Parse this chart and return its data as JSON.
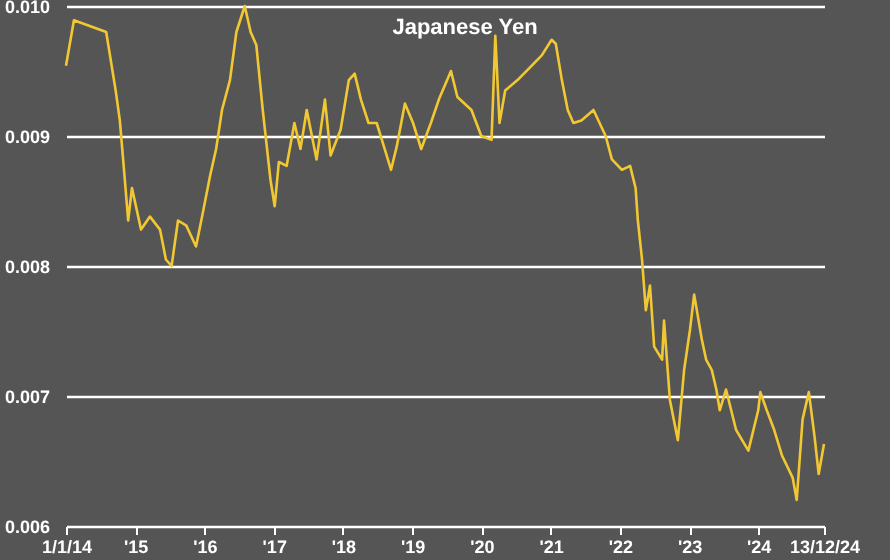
{
  "chart_data": {
    "type": "line",
    "title": "Japanese Yen",
    "x": [
      "2014-01-01",
      "2014-02-12",
      "2014-08-01",
      "2014-09-20",
      "2014-10-12",
      "2014-11-03",
      "2014-11-25",
      "2014-12-15",
      "2015-02-01",
      "2015-03-20",
      "2015-05-12",
      "2015-06-12",
      "2015-07-12",
      "2015-08-15",
      "2015-09-28",
      "2015-11-18",
      "2015-12-20",
      "2016-02-01",
      "2016-03-03",
      "2016-04-03",
      "2016-05-15",
      "2016-06-18",
      "2016-08-01",
      "2016-09-01",
      "2016-10-01",
      "2016-11-04",
      "2016-12-15",
      "2017-01-06",
      "2017-01-28",
      "2017-03-10",
      "2017-04-20",
      "2017-05-22",
      "2017-06-24",
      "2017-08-15",
      "2017-09-28",
      "2017-10-28",
      "2017-12-20",
      "2018-02-01",
      "2018-03-04",
      "2018-04-06",
      "2018-05-16",
      "2018-06-28",
      "2018-08-01",
      "2018-09-12",
      "2018-10-12",
      "2018-11-24",
      "2019-01-06",
      "2019-02-18",
      "2019-04-10",
      "2019-05-22",
      "2019-07-25",
      "2019-08-28",
      "2019-11-10",
      "2020-01-01",
      "2020-02-24",
      "2020-03-15",
      "2020-04-06",
      "2020-05-06",
      "2020-07-10",
      "2020-09-22",
      "2020-11-15",
      "2021-01-06",
      "2021-01-28",
      "2021-03-01",
      "2021-04-01",
      "2021-05-01",
      "2021-06-12",
      "2021-08-15",
      "2021-10-18",
      "2021-11-20",
      "2022-01-12",
      "2022-02-24",
      "2022-03-25",
      "2022-04-06",
      "2022-04-28",
      "2022-05-18",
      "2022-06-09",
      "2022-07-01",
      "2022-08-12",
      "2022-08-22",
      "2022-09-22",
      "2022-11-03",
      "2022-12-06",
      "2023-01-06",
      "2023-01-28",
      "2023-03-10",
      "2023-04-01",
      "2023-05-01",
      "2023-05-25",
      "2023-06-12",
      "2023-07-15",
      "2023-09-06",
      "2023-11-10",
      "2024-01-01",
      "2024-01-12",
      "2024-02-15",
      "2024-03-25",
      "2024-05-06",
      "2024-07-01",
      "2024-07-22",
      "2024-08-22",
      "2024-09-24",
      "2024-10-24",
      "2024-11-15",
      "2024-12-13"
    ],
    "series": [
      {
        "color": "#f2c832",
        "values": [
          0.00954,
          0.00989,
          0.0098,
          0.00935,
          0.00912,
          0.00874,
          0.00835,
          0.0086,
          0.00828,
          0.00838,
          0.00828,
          0.00805,
          0.008,
          0.00835,
          0.00831,
          0.00815,
          0.00838,
          0.0087,
          0.0089,
          0.0092,
          0.00943,
          0.0098,
          0.01,
          0.0098,
          0.0097,
          0.0092,
          0.00866,
          0.00846,
          0.0088,
          0.00877,
          0.0091,
          0.0089,
          0.0092,
          0.00882,
          0.00928,
          0.00885,
          0.00905,
          0.00943,
          0.00948,
          0.00928,
          0.0091,
          0.0091,
          0.00894,
          0.00874,
          0.00892,
          0.00925,
          0.0091,
          0.0089,
          0.0091,
          0.00928,
          0.0095,
          0.0093,
          0.0092,
          0.009,
          0.00897,
          0.00977,
          0.0091,
          0.00935,
          0.00943,
          0.00954,
          0.00962,
          0.00974,
          0.00971,
          0.00943,
          0.0092,
          0.0091,
          0.00912,
          0.0092,
          0.009,
          0.00882,
          0.00874,
          0.00877,
          0.0086,
          0.00835,
          0.00805,
          0.00766,
          0.00785,
          0.00738,
          0.00728,
          0.00758,
          0.00697,
          0.00666,
          0.0072,
          0.00751,
          0.00778,
          0.00743,
          0.00728,
          0.0072,
          0.00705,
          0.00689,
          0.00705,
          0.00674,
          0.00658,
          0.00689,
          0.00703,
          0.00689,
          0.00674,
          0.00654,
          0.00637,
          0.0062,
          0.00682,
          0.00703,
          0.00669,
          0.0064,
          0.00663
        ]
      }
    ],
    "xlim": [
      "2014-01-01",
      "2024-12-13"
    ],
    "xticks": [
      {
        "value": "2014-01-01",
        "label": "1/1/14"
      },
      {
        "value": "2015",
        "label": "'15"
      },
      {
        "value": "2016",
        "label": "'16"
      },
      {
        "value": "2017",
        "label": "'17"
      },
      {
        "value": "2018",
        "label": "'18"
      },
      {
        "value": "2019",
        "label": "'19"
      },
      {
        "value": "2020",
        "label": "'20"
      },
      {
        "value": "2021",
        "label": "'21"
      },
      {
        "value": "2022",
        "label": "'22"
      },
      {
        "value": "2023",
        "label": "'23"
      },
      {
        "value": "2024",
        "label": "'24"
      },
      {
        "value": "2024-12-13",
        "label": "13/12/24"
      }
    ],
    "ylim": [
      0.006,
      0.01
    ],
    "yticks": [
      0.006,
      0.007,
      0.008,
      0.009,
      {
        "value": 0.01,
        "label": "0.010"
      }
    ],
    "grid": "y",
    "marker": "none",
    "line_style": "solid"
  }
}
